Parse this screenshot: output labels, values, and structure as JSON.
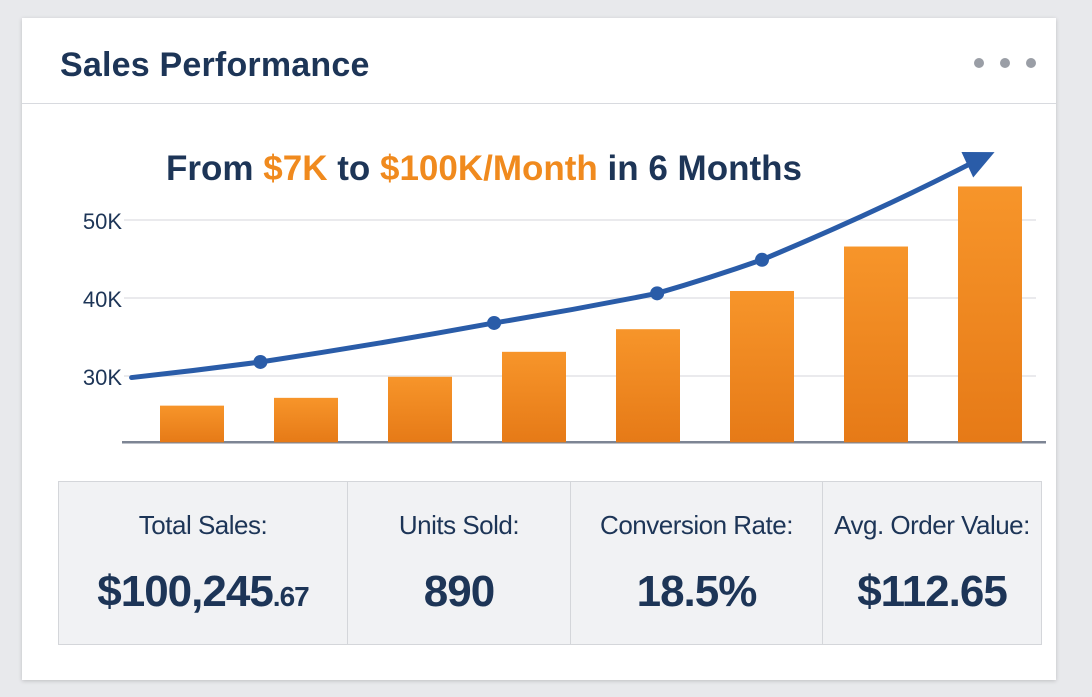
{
  "header": {
    "title": "Sales Performance",
    "menu_icon": "more-horizontal-icon"
  },
  "chart_data": {
    "type": "bar",
    "title_parts": [
      {
        "text": "From ",
        "highlight": false
      },
      {
        "text": "$7K",
        "highlight": true
      },
      {
        "text": " to ",
        "highlight": false
      },
      {
        "text": "$100K/Month",
        "highlight": true
      },
      {
        "text": " in 6 Months",
        "highlight": false
      }
    ],
    "xlabel": "",
    "ylabel": "",
    "y_ticks": [
      {
        "value": 30,
        "label": "30K"
      },
      {
        "value": 40,
        "label": "40K"
      },
      {
        "value": 50,
        "label": "50K"
      }
    ],
    "ylim": [
      21.5,
      60
    ],
    "grid": true,
    "bars": {
      "name": "Sales",
      "values": [
        26.2,
        27.2,
        29.9,
        33.1,
        36.0,
        40.9,
        46.6,
        54.3
      ],
      "color": "#f08a1e"
    },
    "trend": {
      "name": "Trend",
      "x": [
        -0.53,
        0.6,
        2.65,
        4.08,
        5.0,
        7.04
      ],
      "values": [
        29.8,
        31.8,
        36.8,
        40.6,
        44.9,
        58.7
      ],
      "markers": [
        1,
        2,
        3,
        4
      ],
      "arrow": true,
      "color": "#2a5ca8"
    }
  },
  "stats": [
    {
      "label": "Total Sales:",
      "value_main": "$100,245",
      "value_small": ".67"
    },
    {
      "label": "Units Sold:",
      "value_main": "890",
      "value_small": ""
    },
    {
      "label": "Conversion Rate:",
      "value_main": "18.5%",
      "value_small": ""
    },
    {
      "label": "Avg. Order Value:",
      "value_main": "$112.65",
      "value_small": ""
    }
  ],
  "colors": {
    "navy": "#1d3557",
    "orange": "#f08a1e",
    "blue": "#2a5ca8"
  }
}
